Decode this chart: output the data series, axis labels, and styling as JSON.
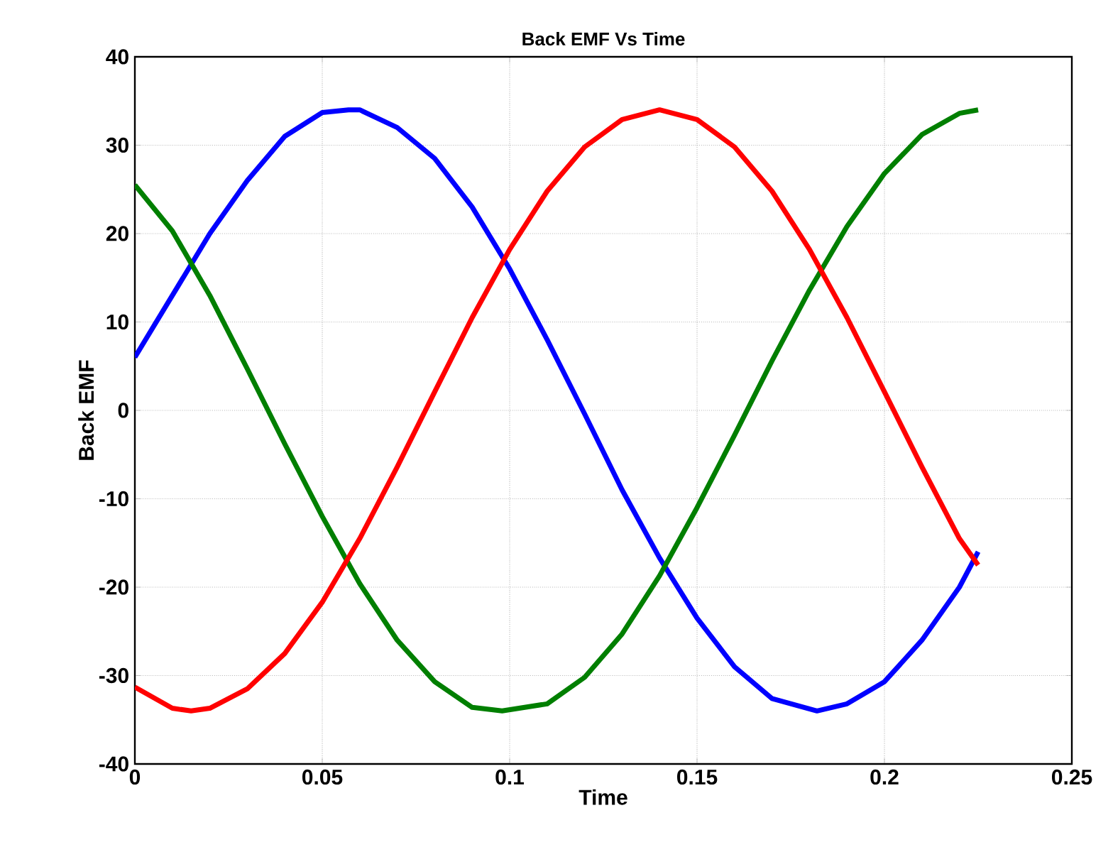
{
  "chart_data": {
    "type": "line",
    "title": "Back EMF Vs Time",
    "xlabel": "Time",
    "ylabel": "Back EMF",
    "xlim": [
      0,
      0.25
    ],
    "ylim": [
      -40,
      40
    ],
    "xticks": [
      0,
      0.05,
      0.1,
      0.15,
      0.2,
      0.25
    ],
    "yticks": [
      -40,
      -30,
      -20,
      -10,
      0,
      10,
      20,
      30,
      40
    ],
    "grid": true,
    "marker": "none",
    "line_style": "solid",
    "x": [
      0,
      0.01,
      0.02,
      0.03,
      0.04,
      0.05,
      0.057,
      0.06,
      0.07,
      0.08,
      0.09,
      0.1,
      0.11,
      0.12,
      0.13,
      0.14,
      0.15,
      0.16,
      0.17,
      0.182,
      0.19,
      0.2,
      0.21,
      0.22,
      0.225
    ],
    "series": [
      {
        "color": "#0000ff",
        "values": [
          6,
          13,
          20,
          26,
          31,
          33.7,
          34,
          34,
          32,
          28.5,
          23,
          16,
          8,
          -0.4,
          -9,
          -16.7,
          -23.5,
          -29,
          -32.6,
          -34,
          -33.2,
          -30.7,
          -26,
          -20,
          -16
        ]
      },
      {
        "color": "#007f00",
        "x": [
          0,
          0.01,
          0.02,
          0.03,
          0.04,
          0.05,
          0.06,
          0.07,
          0.08,
          0.09,
          0.098,
          0.11,
          0.12,
          0.13,
          0.14,
          0.15,
          0.16,
          0.17,
          0.18,
          0.19,
          0.2,
          0.21,
          0.22,
          0.225
        ],
        "values": [
          25.5,
          20.3,
          13,
          4.7,
          -3.8,
          -12,
          -19.6,
          -26,
          -30.7,
          -33.6,
          -34,
          -33.2,
          -30.2,
          -25.3,
          -18.7,
          -11,
          -2.8,
          5.6,
          13.6,
          20.8,
          26.8,
          31.2,
          33.6,
          34
        ]
      },
      {
        "color": "#ff0000",
        "x": [
          0,
          0.01,
          0.015,
          0.02,
          0.03,
          0.04,
          0.05,
          0.06,
          0.07,
          0.08,
          0.09,
          0.1,
          0.11,
          0.12,
          0.13,
          0.14,
          0.15,
          0.16,
          0.17,
          0.18,
          0.19,
          0.2,
          0.21,
          0.22,
          0.225
        ],
        "values": [
          -31.3,
          -33.7,
          -34,
          -33.7,
          -31.5,
          -27.5,
          -21.7,
          -14.5,
          -6.4,
          2.1,
          10.5,
          18.2,
          24.8,
          29.8,
          32.9,
          34,
          32.9,
          29.8,
          24.8,
          18.2,
          10.5,
          2.1,
          -6.4,
          -14.5,
          -17.5
        ]
      }
    ]
  }
}
